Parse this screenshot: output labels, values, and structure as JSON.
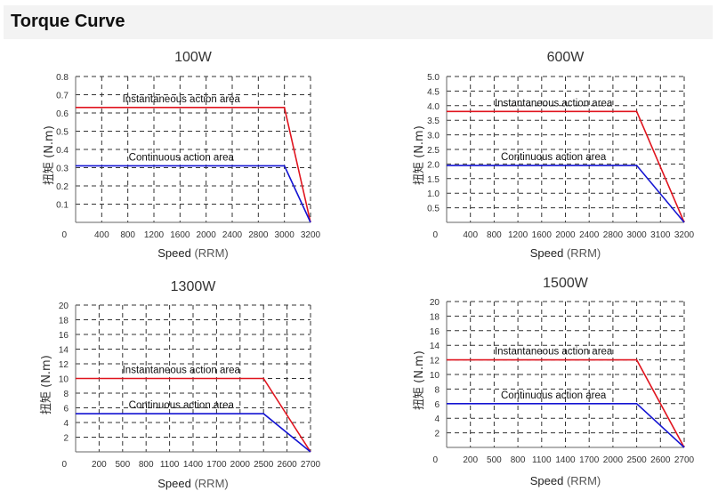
{
  "page": {
    "title": "Torque Curve"
  },
  "colors": {
    "instantaneous": "#e0141e",
    "continuous": "#1414d2",
    "grid": "#333333",
    "axis": "#666666"
  },
  "chart_data": [
    {
      "type": "line",
      "title": "100W",
      "xlabel": "Speed",
      "xunit": "(RRM)",
      "ylabel": "扭矩 (N.m)",
      "x_ticks": [
        "400",
        "800",
        "1200",
        "1600",
        "2000",
        "2400",
        "2800",
        "3000",
        "3200"
      ],
      "y_ticks": [
        "0.1",
        "0.2",
        "0.3",
        "0.4",
        "0.5",
        "0.6",
        "0.7",
        "0.8"
      ],
      "y_min": 0,
      "y_max": 0.8,
      "origin_label": "0",
      "grid": true,
      "series": [
        {
          "name": "Instantaneous action area",
          "key": "instantaneous",
          "y": [
            0.63,
            0.63,
            0
          ]
        },
        {
          "name": "Continuous action area",
          "key": "continuous",
          "y": [
            0.31,
            0.31,
            0
          ]
        }
      ],
      "x_points": [
        "0",
        "3000",
        "3200"
      ]
    },
    {
      "type": "line",
      "title": "600W",
      "xlabel": "Speed",
      "xunit": "(RRM)",
      "ylabel": "扭矩 (N.m)",
      "x_ticks": [
        "400",
        "800",
        "1200",
        "1600",
        "2000",
        "2400",
        "2800",
        "3000",
        "3100",
        "3200"
      ],
      "y_ticks": [
        "0.5",
        "1.0",
        "1.5",
        "2.0",
        "2.5",
        "3.0",
        "3.5",
        "4.0",
        "4.5",
        "5.0"
      ],
      "y_min": 0,
      "y_max": 5.0,
      "origin_label": "0",
      "grid": true,
      "series": [
        {
          "name": "Instantaneous action area",
          "key": "instantaneous",
          "y": [
            3.8,
            3.8,
            0
          ]
        },
        {
          "name": "Continuous action area",
          "key": "continuous",
          "y": [
            1.95,
            1.95,
            0
          ]
        }
      ],
      "x_points": [
        "0",
        "3000",
        "3200"
      ]
    },
    {
      "type": "line",
      "title": "1300W",
      "xlabel": "Speed",
      "xunit": "(RRM)",
      "ylabel": "扭矩 (N.m)",
      "x_ticks": [
        "200",
        "500",
        "800",
        "1100",
        "1400",
        "1700",
        "2000",
        "2500",
        "2600",
        "2700"
      ],
      "y_ticks": [
        "2",
        "4",
        "6",
        "8",
        "10",
        "12",
        "14",
        "16",
        "18",
        "20"
      ],
      "y_min": 0,
      "y_max": 20,
      "origin_label": "0",
      "grid": true,
      "series": [
        {
          "name": "Instantaneous action area",
          "key": "instantaneous",
          "y": [
            10,
            10,
            0
          ]
        },
        {
          "name": "Continuous action area",
          "key": "continuous",
          "y": [
            5.2,
            5.2,
            0
          ]
        }
      ],
      "x_points": [
        "0",
        "2500",
        "2700"
      ]
    },
    {
      "type": "line",
      "title": "1500W",
      "xlabel": "Speed",
      "xunit": "(RRM)",
      "ylabel": "扭矩 (N.m)",
      "x_ticks": [
        "200",
        "500",
        "800",
        "1100",
        "1400",
        "1700",
        "2000",
        "2500",
        "2600",
        "2700"
      ],
      "y_ticks": [
        "2",
        "4",
        "6",
        "8",
        "10",
        "12",
        "14",
        "16",
        "18",
        "20"
      ],
      "y_min": 0,
      "y_max": 20,
      "origin_label": "0",
      "grid": true,
      "series": [
        {
          "name": "Instantaneous action area",
          "key": "instantaneous",
          "y": [
            12,
            12,
            0
          ]
        },
        {
          "name": "Continuous action area",
          "key": "continuous",
          "y": [
            6,
            6,
            0
          ]
        }
      ],
      "x_points": [
        "0",
        "2500",
        "2700"
      ]
    }
  ]
}
